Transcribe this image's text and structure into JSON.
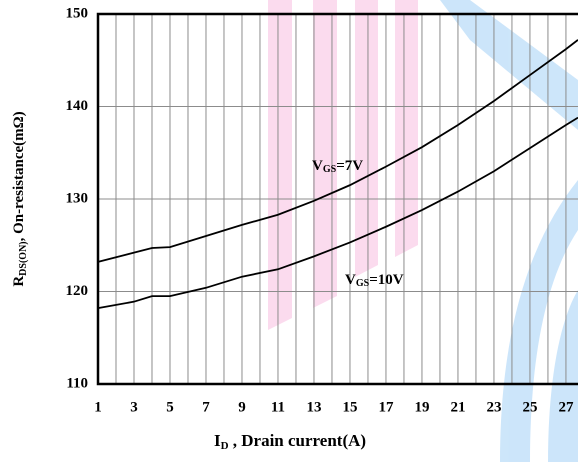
{
  "chart_data": {
    "type": "line",
    "x_label": [
      "I",
      "D",
      " , Drain current(A)"
    ],
    "y_label": [
      "R",
      "DS(ON)",
      ", On-resistance(mΩ)"
    ],
    "x": [
      1,
      3,
      4,
      5,
      7,
      9,
      11,
      13,
      15,
      17,
      19,
      21,
      23,
      25,
      27,
      27.67
    ],
    "series": [
      {
        "label": [
          "V",
          "GS",
          "=7V"
        ],
        "color": "#000000",
        "values": [
          123.2,
          124.2,
          124.7,
          124.8,
          126.0,
          127.2,
          128.3,
          129.8,
          131.5,
          133.5,
          135.6,
          138.0,
          140.6,
          143.4,
          146.2,
          147.2
        ]
      },
      {
        "label": [
          "V",
          "GS",
          "=10V"
        ],
        "color": "#000000",
        "values": [
          118.2,
          118.9,
          119.5,
          119.5,
          120.4,
          121.6,
          122.4,
          123.8,
          125.3,
          127.0,
          128.8,
          130.8,
          133.0,
          135.5,
          138.0,
          138.8
        ]
      }
    ],
    "xlim": [
      1,
      27.67
    ],
    "ylim": [
      110,
      150
    ],
    "xticks": [
      1,
      3,
      5,
      7,
      9,
      11,
      13,
      15,
      17,
      19,
      21,
      23,
      25,
      27
    ],
    "x_minor_ticks": [
      2,
      4,
      6,
      8,
      10,
      12,
      14,
      16,
      18,
      20,
      22,
      24,
      26
    ],
    "yticks": [
      110,
      120,
      130,
      140,
      150
    ],
    "grid": true
  }
}
